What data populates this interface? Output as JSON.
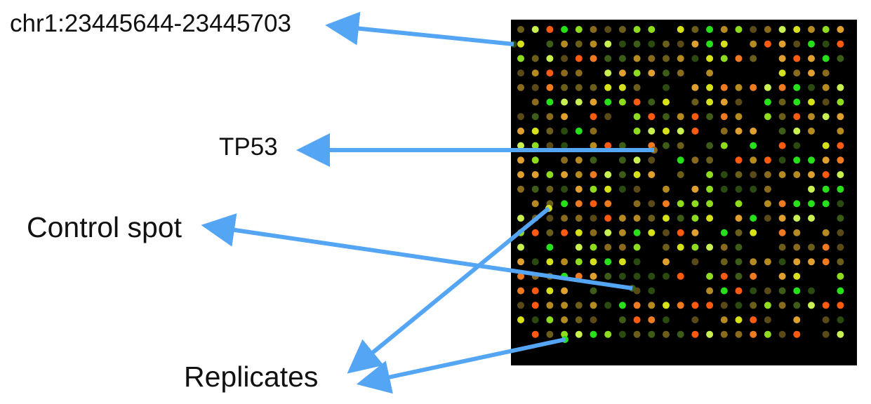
{
  "labels": {
    "locus": "chr1:23445644-23445703",
    "gene": "TP53",
    "control": "Control spot",
    "replicates": "Replicates"
  },
  "colors": {
    "background": "#000000",
    "arrow": "#55a5f5",
    "spot_palette": [
      "#2a4a10",
      "#3d5c18",
      "#5a4a18",
      "#6b5e1a",
      "#8a6a1c",
      "#b58a20",
      "#e0a030",
      "#f07a20",
      "#ff5a10",
      "#d6e11a",
      "#8fdc1e",
      "#26e11a",
      "#c8f050"
    ]
  },
  "microarray": {
    "rows": 22,
    "columns": 23
  }
}
